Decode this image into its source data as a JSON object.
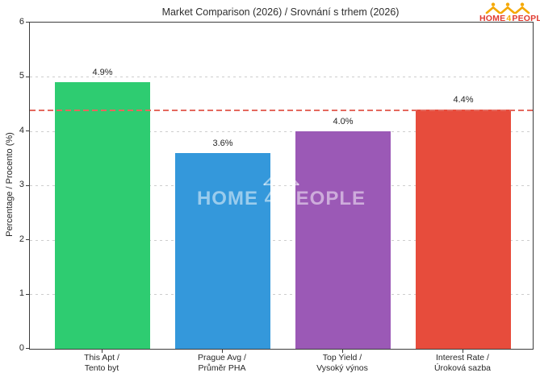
{
  "header": {
    "title": "Market Comparison (2026) / Srovnání s trhem (2026)",
    "logo": {
      "home": "HOME",
      "four": "4",
      "people": "PEOPLE",
      "icon": "crown-of-houses-icon",
      "text_color": "#e03a2f",
      "accent_color": "#f5a800"
    }
  },
  "watermark": {
    "text": "HOME 4 PEOPLE",
    "icon": "houses-watermark-icon"
  },
  "chart_data": {
    "type": "bar",
    "title": "Market Comparison (2026) / Srovnání s trhem (2026)",
    "xlabel": "",
    "ylabel": "Percentage / Procento (%)",
    "ylim": [
      0,
      6
    ],
    "yticks": [
      0,
      1,
      2,
      3,
      4,
      5,
      6
    ],
    "grid": "horizontal-dotted",
    "legend": "none",
    "categories": [
      [
        "This Apt /",
        "Tento byt"
      ],
      [
        "Prague Avg /",
        "Průměr PHA"
      ],
      [
        "Top Yield /",
        "Vysoký výnos"
      ],
      [
        "Interest Rate /",
        "Úroková sazba"
      ]
    ],
    "values": [
      4.9,
      3.6,
      4.0,
      4.4
    ],
    "value_labels": [
      "4.9%",
      "3.6%",
      "4.0%",
      "4.4%"
    ],
    "bar_colors": [
      "#2ecc71",
      "#3498db",
      "#9b59b6",
      "#e74c3c"
    ],
    "reference_line": {
      "value": 4.4,
      "color": "#e4695e",
      "style": "dashed"
    }
  }
}
